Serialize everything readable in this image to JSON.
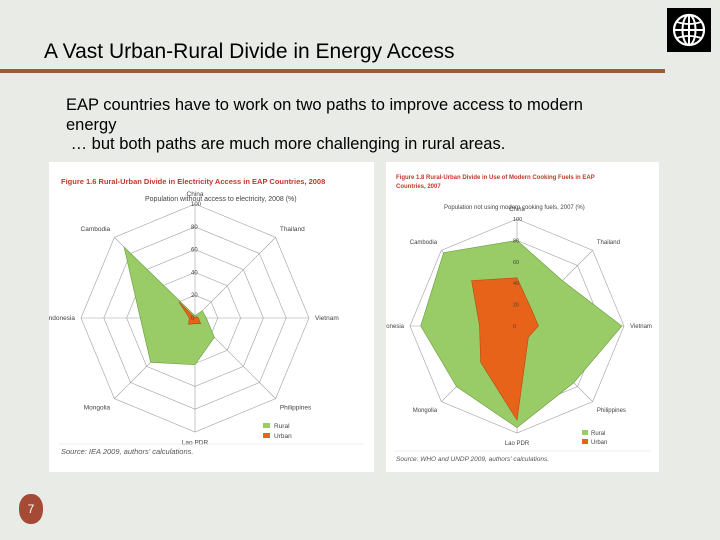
{
  "slide": {
    "title": "A Vast Urban-Rural Divide in Energy Access",
    "body_lines": [
      "EAP countries have to work on two paths to improve access to modern",
      "energy",
      " … but both paths are much more challenging in rural areas."
    ],
    "page_number": "7"
  },
  "colors": {
    "rural": "#99cc66",
    "urban": "#e8631a",
    "figure_title": "#c0392b",
    "rule": "#9d5a3c"
  },
  "chart_data": [
    {
      "type": "radar",
      "title": "Figure 1.6  Rural-Urban Divide in Electricity Access in EAP Countries, 2008",
      "subtitle": "Population without access to electricity, 2008 (%)",
      "axes": [
        "China",
        "Thailand",
        "Vietnam",
        "Philippines",
        "Lao PDR",
        "Mongolia",
        "Indonesia",
        "Cambodia"
      ],
      "ticks": [
        "0",
        "20",
        "40",
        "60",
        "80",
        "100"
      ],
      "range": [
        0,
        100
      ],
      "series": [
        {
          "name": "Rural",
          "values": [
            2,
            9,
            10,
            24,
            41,
            55,
            48,
            88
          ]
        },
        {
          "name": "Urban",
          "values": [
            0,
            2,
            3,
            7,
            5,
            8,
            5,
            20
          ]
        }
      ],
      "legend_position": "bottom-right",
      "source": "Source: IEA 2009, authors' calculations."
    },
    {
      "type": "radar",
      "title_lines": [
        "Figure 1.8  Rural-Urban Divide in Use of Modern Cooking Fuels in EAP",
        "Countries, 2007"
      ],
      "subtitle": "Population not using modern cooking fuels, 2007 (%)",
      "axes": [
        "China",
        "Thailand",
        "Vietnam",
        "Philippines",
        "Lao PDR",
        "Mongolia",
        "Indonesia",
        "Cambodia"
      ],
      "ticks": [
        "0",
        "20",
        "40",
        "60",
        "80",
        "100"
      ],
      "range": [
        0,
        100
      ],
      "series": [
        {
          "name": "Rural",
          "values": [
            80,
            60,
            98,
            75,
            95,
            80,
            90,
            97
          ]
        },
        {
          "name": "Urban",
          "values": [
            45,
            20,
            20,
            15,
            88,
            48,
            35,
            60
          ]
        }
      ],
      "legend_position": "bottom-right",
      "source": "Source: WHO and UNDP 2009, authors' calculations."
    }
  ]
}
